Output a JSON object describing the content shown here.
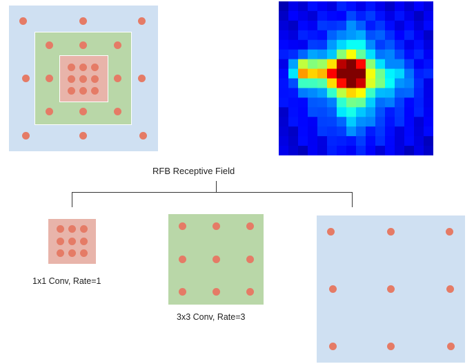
{
  "title": "RFB Receptive Field",
  "branches": [
    {
      "id": "rate1",
      "label": "1x1 Conv, Rate=1"
    },
    {
      "id": "rate3",
      "label": "3x3 Conv, Rate=3"
    },
    {
      "id": "rate5",
      "label": ""
    }
  ],
  "colors": {
    "blue_fill": "#cfe0f2",
    "green_fill": "#b9d7a8",
    "red_fill": "#e8b4aa",
    "dot": "#e57b66",
    "border": "#ffffff",
    "connector": "#333333",
    "heatmap_bg": "#00008f"
  },
  "heatmap": {
    "description_icon": "receptive-field-heatmap"
  }
}
